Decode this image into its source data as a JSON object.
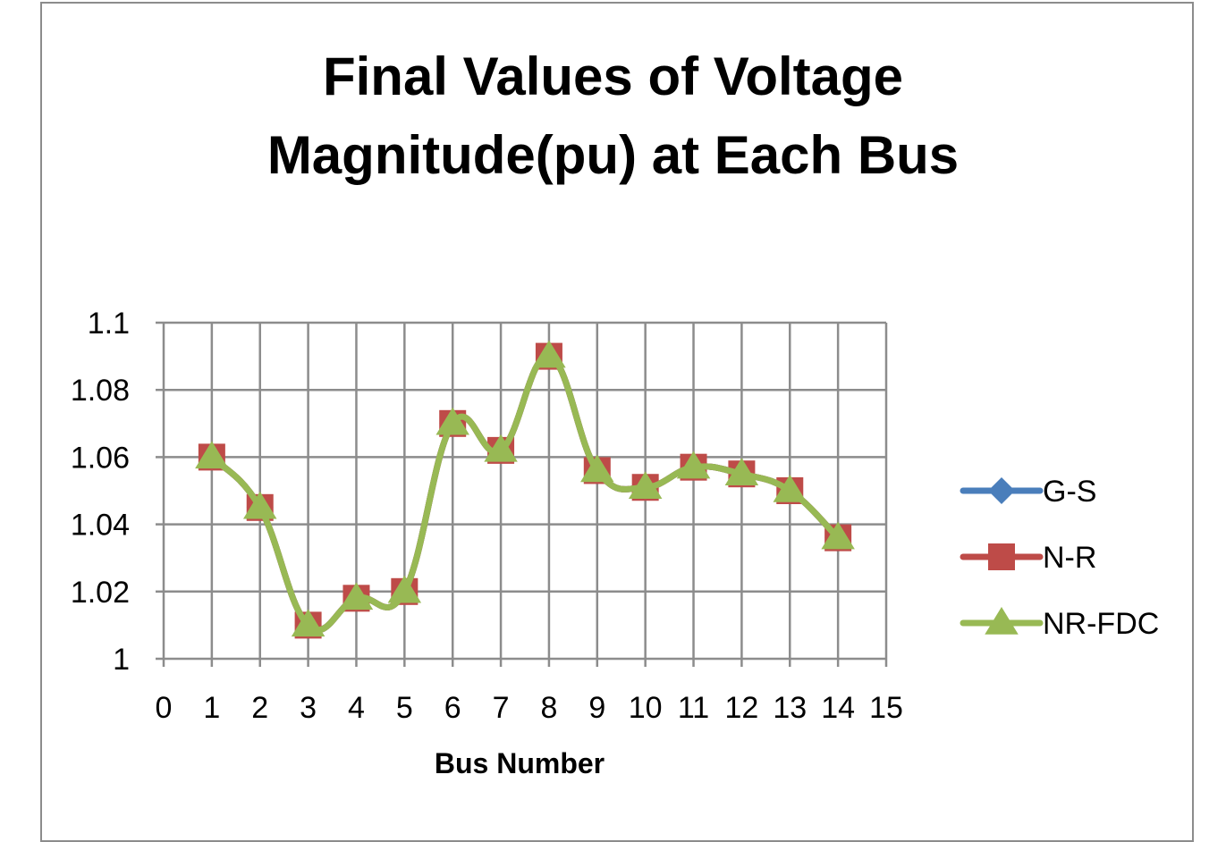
{
  "chart_data": {
    "type": "line",
    "title_lines": [
      "Final Values of Voltage",
      "Magnitude(pu) at Each Bus"
    ],
    "xlabel": "Bus Number",
    "ylabel": "",
    "xlim": [
      0,
      15
    ],
    "ylim": [
      1,
      1.1
    ],
    "x_ticks": [
      "0",
      "1",
      "2",
      "3",
      "4",
      "5",
      "6",
      "7",
      "8",
      "9",
      "10",
      "11",
      "12",
      "13",
      "14",
      "15"
    ],
    "y_ticks": [
      "1",
      "1.02",
      "1.04",
      "1.06",
      "1.08",
      "1.1"
    ],
    "grid": true,
    "legend_position": "right",
    "x": [
      1,
      2,
      3,
      4,
      5,
      6,
      7,
      8,
      9,
      10,
      11,
      12,
      13,
      14
    ],
    "series": [
      {
        "name": "G-S",
        "color": "#4a7ebb",
        "marker": "diamond",
        "values": [
          1.06,
          1.045,
          1.01,
          1.018,
          1.02,
          1.07,
          1.062,
          1.09,
          1.056,
          1.051,
          1.057,
          1.055,
          1.05,
          1.036
        ]
      },
      {
        "name": "N-R",
        "color": "#be4b48",
        "marker": "square",
        "values": [
          1.06,
          1.045,
          1.01,
          1.018,
          1.02,
          1.07,
          1.062,
          1.09,
          1.056,
          1.051,
          1.057,
          1.055,
          1.05,
          1.036
        ]
      },
      {
        "name": "NR-FDC",
        "color": "#98b954",
        "marker": "triangle",
        "values": [
          1.06,
          1.045,
          1.01,
          1.018,
          1.02,
          1.07,
          1.062,
          1.09,
          1.056,
          1.051,
          1.057,
          1.055,
          1.05,
          1.036
        ]
      }
    ]
  }
}
